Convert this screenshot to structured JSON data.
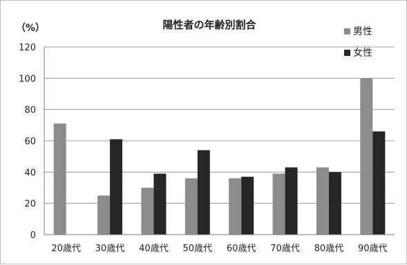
{
  "chart_data": {
    "type": "bar",
    "title": "陽性者の年齢別割合",
    "ylabel": "（%）",
    "xlabel": "",
    "categories": [
      "20歳代",
      "30歳代",
      "40歳代",
      "50歳代",
      "60歳代",
      "70歳代",
      "80歳代",
      "90歳代"
    ],
    "series": [
      {
        "name": "男性",
        "color": "#8c8c8c",
        "values": [
          71,
          25,
          30,
          36,
          36,
          39,
          43,
          100
        ]
      },
      {
        "name": "女性",
        "color": "#262626",
        "values": [
          0,
          61,
          39,
          54,
          37,
          43,
          40,
          66
        ]
      }
    ],
    "ylim": [
      0,
      120
    ],
    "yticks": [
      0,
      20,
      40,
      60,
      80,
      100,
      120
    ],
    "grid": true,
    "legend_position": "top-right"
  }
}
